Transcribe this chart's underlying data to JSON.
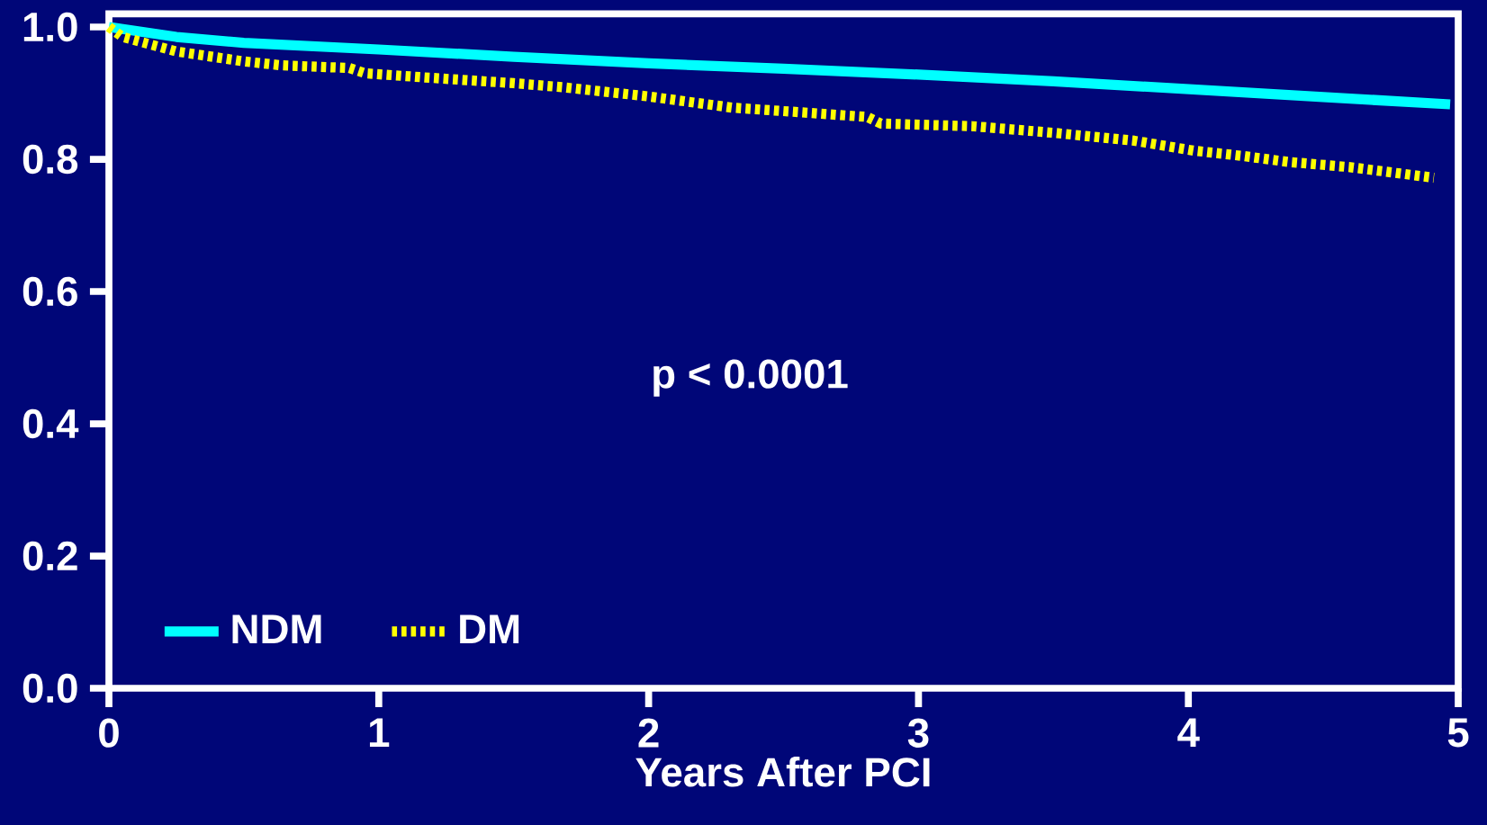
{
  "chart_data": {
    "type": "line",
    "xlabel": "Years After PCI",
    "annotations": [
      "p < 0.0001"
    ],
    "xlim": [
      0,
      5
    ],
    "ylim": [
      0,
      1.02
    ],
    "xticks": [
      0,
      1,
      2,
      3,
      4,
      5
    ],
    "yticks": [
      {
        "value": 0,
        "label": "0.0"
      },
      {
        "value": 0.2,
        "label": "0.2"
      },
      {
        "value": 0.4,
        "label": "0.4"
      },
      {
        "value": 0.6,
        "label": "0.6"
      },
      {
        "value": 0.8,
        "label": "0.8"
      },
      {
        "value": 1.0,
        "label": "1.0"
      }
    ],
    "grid": false,
    "legend": "bottom left",
    "marker": "none",
    "series": [
      {
        "name": "NDM",
        "color": "#00ffff",
        "line_style": "solid",
        "x": [
          0,
          0.25,
          0.5,
          1,
          1.5,
          2,
          2.5,
          3,
          3.5,
          4,
          4.5,
          4.97
        ],
        "values": [
          1.0,
          0.985,
          0.976,
          0.966,
          0.955,
          0.945,
          0.937,
          0.928,
          0.918,
          0.906,
          0.894,
          0.883
        ]
      },
      {
        "name": "DM",
        "color": "#ffff00",
        "line_style": "dotted",
        "x": [
          0,
          0.05,
          0.25,
          0.5,
          0.64,
          0.89,
          0.95,
          1.16,
          1.5,
          1.68,
          2,
          2.31,
          2.6,
          2.81,
          2.86,
          3.2,
          3.5,
          3.8,
          4.02,
          4.2,
          4.37,
          4.6,
          4.91
        ],
        "values": [
          1.0,
          0.985,
          0.963,
          0.948,
          0.942,
          0.938,
          0.93,
          0.924,
          0.915,
          0.909,
          0.895,
          0.878,
          0.87,
          0.864,
          0.854,
          0.85,
          0.84,
          0.828,
          0.813,
          0.805,
          0.796,
          0.788,
          0.772
        ]
      }
    ]
  }
}
